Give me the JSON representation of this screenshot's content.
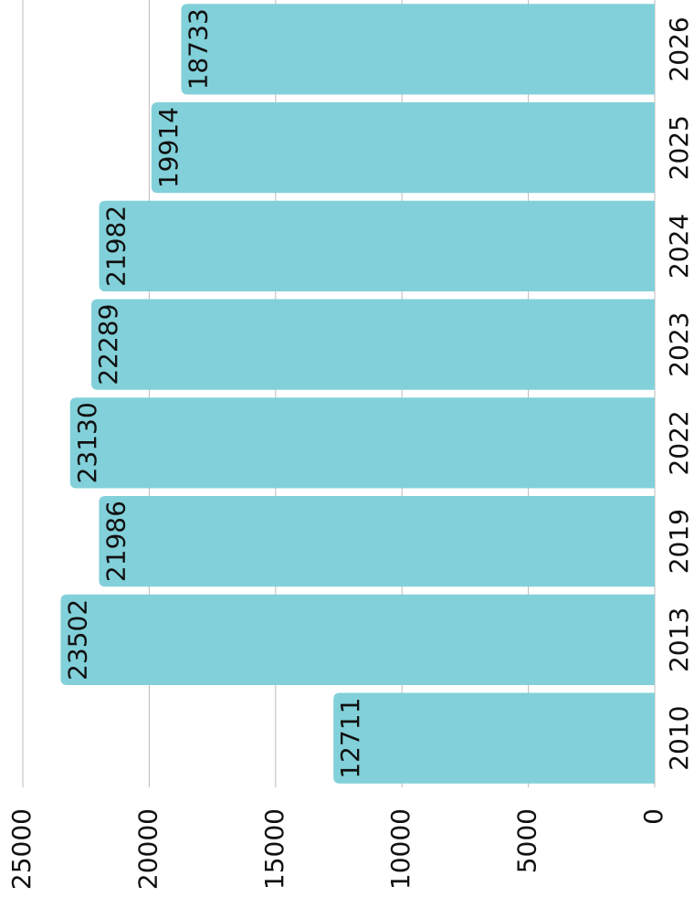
{
  "chart_data": {
    "type": "bar",
    "categories": [
      "2010",
      "2013",
      "2019",
      "2022",
      "2023",
      "2024",
      "2025",
      "2026"
    ],
    "values": [
      12711,
      23502,
      21986,
      23130,
      22289,
      21982,
      19914,
      18733
    ],
    "color": "#82d0d9",
    "ylim": [
      0,
      25000
    ],
    "yticks": [
      0,
      5000,
      10000,
      15000,
      20000,
      25000
    ],
    "grid": true
  }
}
